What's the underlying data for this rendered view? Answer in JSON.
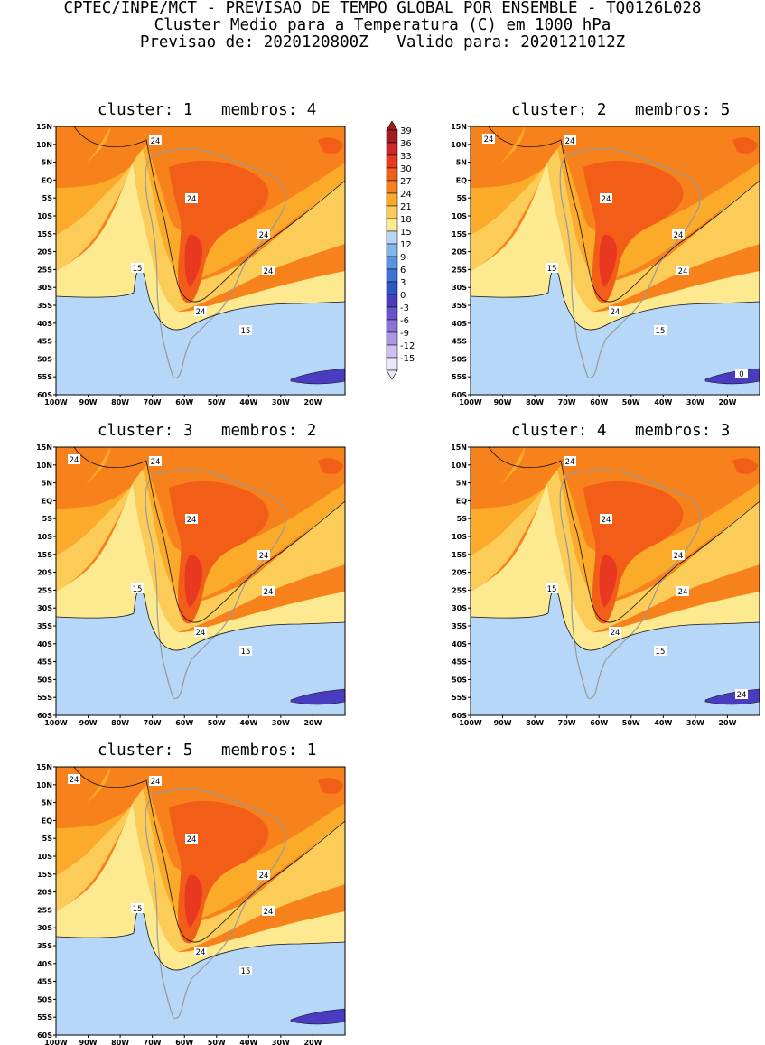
{
  "header": {
    "line1": "CPTEC/INPE/MCT - PREVISAO DE TEMPO GLOBAL POR ENSEMBLE - TQ0126L028",
    "line2": "Cluster Medio para a Temperatura (C) em 1000 hPa",
    "line3": "Previsao de: 2020120800Z   Valido para: 2020121012Z"
  },
  "panels": [
    {
      "title": "cluster: 1   membros: 4",
      "labels": {
        "a": "24",
        "b": "24",
        "c": "24",
        "d": "24",
        "e": "15",
        "f": "24",
        "g": "15"
      }
    },
    {
      "title": "cluster: 2   membros: 5",
      "labels": {
        "a": "24",
        "b": "24",
        "c": "24",
        "d": "24",
        "e": "15",
        "f": "24",
        "g": "15",
        "h": "0",
        "i": "24"
      }
    },
    {
      "title": "cluster: 3   membros: 2",
      "labels": {
        "a": "24",
        "b": "24",
        "c": "24",
        "d": "24",
        "e": "15",
        "f": "24",
        "g": "15",
        "i": "24"
      }
    },
    {
      "title": "cluster: 4   membros: 3",
      "labels": {
        "a": "24",
        "b": "24",
        "c": "24",
        "d": "24",
        "e": "15",
        "f": "24",
        "g": "15",
        "h": "24"
      }
    },
    {
      "title": "cluster: 5   membros: 1",
      "labels": {
        "a": "24",
        "b": "24",
        "c": "24",
        "d": "24",
        "e": "15",
        "f": "24",
        "g": "15",
        "i": "24"
      }
    }
  ],
  "axes": {
    "lat_ticks": [
      "15N",
      "10N",
      "5N",
      "EQ",
      "5S",
      "10S",
      "15S",
      "20S",
      "25S",
      "30S",
      "35S",
      "40S",
      "45S",
      "50S",
      "55S",
      "60S"
    ],
    "lon_ticks": [
      "100W",
      "90W",
      "80W",
      "70W",
      "60W",
      "50W",
      "40W",
      "30W",
      "20W"
    ]
  },
  "colorbar": {
    "labels": [
      "39",
      "36",
      "33",
      "30",
      "27",
      "24",
      "21",
      "18",
      "15",
      "12",
      "9",
      "6",
      "3",
      "0",
      "-3",
      "-6",
      "-9",
      "-12",
      "-15"
    ],
    "colors": [
      "#a51c1c",
      "#cf2727",
      "#e8381f",
      "#f25d18",
      "#f7821c",
      "#fbaa2a",
      "#fccc59",
      "#fde98f",
      "#b6d7f7",
      "#84b6ee",
      "#5694e5",
      "#3f73d6",
      "#2b56c5",
      "#4a3cc0",
      "#6a52cd",
      "#8b73dc",
      "#ab97e8",
      "#cfbff2",
      "#ece6fb"
    ]
  },
  "map_colors": {
    "lt0": "#4a3cc0",
    "t0_3": "#2b56c5",
    "t3_6": "#3f73d6",
    "t6_9": "#5694e5",
    "t9_12": "#84b6ee",
    "t12_15": "#b6d7f7",
    "t15_18": "#fde98f",
    "t18_21": "#fccc59",
    "t21_24": "#fbaa2a",
    "t24_27": "#f7821c",
    "t27_30": "#f25d18",
    "t30_33": "#e8381f",
    "coast": "#999999"
  }
}
